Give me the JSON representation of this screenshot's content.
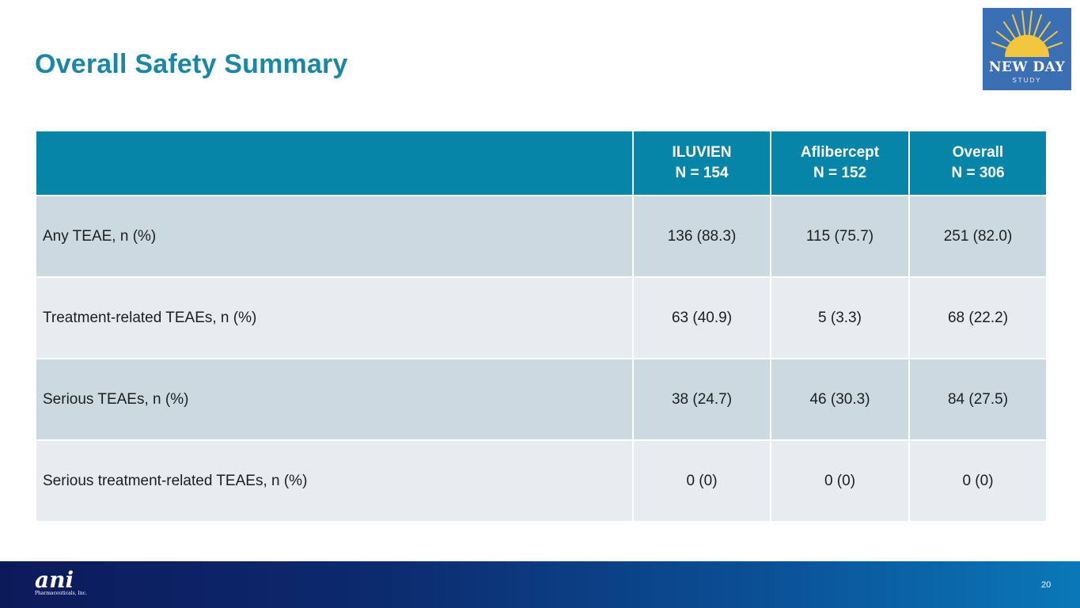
{
  "slide": {
    "title": "Overall Safety Summary",
    "page_number": "20"
  },
  "logo": {
    "main_text": "NEW DAY",
    "sub_text": "STUDY"
  },
  "footer": {
    "company_mark": "ani",
    "company_subtitle": "Pharmaceuticals, Inc."
  },
  "table": {
    "columns": [
      {
        "name": "ILUVIEN",
        "n": "N = 154"
      },
      {
        "name": "Aflibercept",
        "n": "N = 152"
      },
      {
        "name": "Overall",
        "n": "N = 306"
      }
    ],
    "rows": [
      {
        "label": "Any TEAE, n (%)",
        "values": [
          "136 (88.3)",
          "115 (75.7)",
          "251 (82.0)"
        ]
      },
      {
        "label": "Treatment-related TEAEs, n (%)",
        "values": [
          "63 (40.9)",
          "5 (3.3)",
          "68 (22.2)"
        ]
      },
      {
        "label": "Serious TEAEs, n (%)",
        "values": [
          "38 (24.7)",
          "46 (30.3)",
          "84 (27.5)"
        ]
      },
      {
        "label": "Serious treatment-related TEAEs, n (%)",
        "values": [
          "0 (0)",
          "0 (0)",
          "0 (0)"
        ]
      }
    ]
  },
  "colors": {
    "title": "#1a86a8",
    "header_bg": "#0785a8",
    "row_dark": "#cbd9e1",
    "row_light": "#e7ecf0",
    "logo_bg": "#3a6fb3",
    "sun": "#f3c640"
  }
}
